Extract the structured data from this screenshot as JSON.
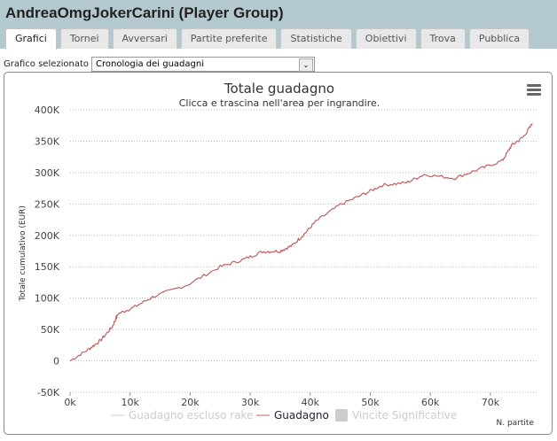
{
  "header": {
    "title": "AndreaOmgJokerCarini (Player Group)"
  },
  "tabs": [
    "Grafici",
    "Tornei",
    "Avversari",
    "Partite preferite",
    "Statistiche",
    "Obiettivi",
    "Trova",
    "Pubblica"
  ],
  "selector": {
    "label": "Grafico selezionato",
    "value": "Cronologia dei guadagni"
  },
  "chart_data": {
    "type": "line",
    "title": "Totale guadagno",
    "subtitle": "Clicca e trascina nell'area per ingrandire.",
    "ylabel": "Totale cumulativo (EUR)",
    "xlabel": "N. partite",
    "ylim": [
      -50000,
      400000
    ],
    "xlim": [
      0,
      77000
    ],
    "yticks": [
      "-50K",
      "0",
      "50K",
      "100K",
      "150K",
      "200K",
      "250K",
      "300K",
      "350K",
      "400K"
    ],
    "xticks": [
      "0k",
      "10k",
      "20k",
      "30k",
      "40k",
      "50k",
      "60k",
      "70k"
    ],
    "legend": [
      "Guadagno escluso rake",
      "Guadagno",
      "Vincite Significative"
    ],
    "series": [
      {
        "name": "Guadagno",
        "color": "#c06060",
        "x": [
          0,
          3000,
          5000,
          7000,
          8000,
          10500,
          14000,
          19500,
          25000,
          29000,
          32000,
          35000,
          37000,
          39000,
          41000,
          45000,
          49000,
          52000,
          56000,
          59000,
          64000,
          68000,
          72000,
          73500,
          75500,
          77000
        ],
        "y": [
          0,
          18000,
          32000,
          54000,
          75000,
          85000,
          103000,
          121000,
          150000,
          162000,
          174000,
          175000,
          184000,
          202000,
          223000,
          249000,
          266000,
          280000,
          284000,
          297000,
          291000,
          305000,
          319000,
          343000,
          357000,
          378000
        ]
      }
    ]
  }
}
